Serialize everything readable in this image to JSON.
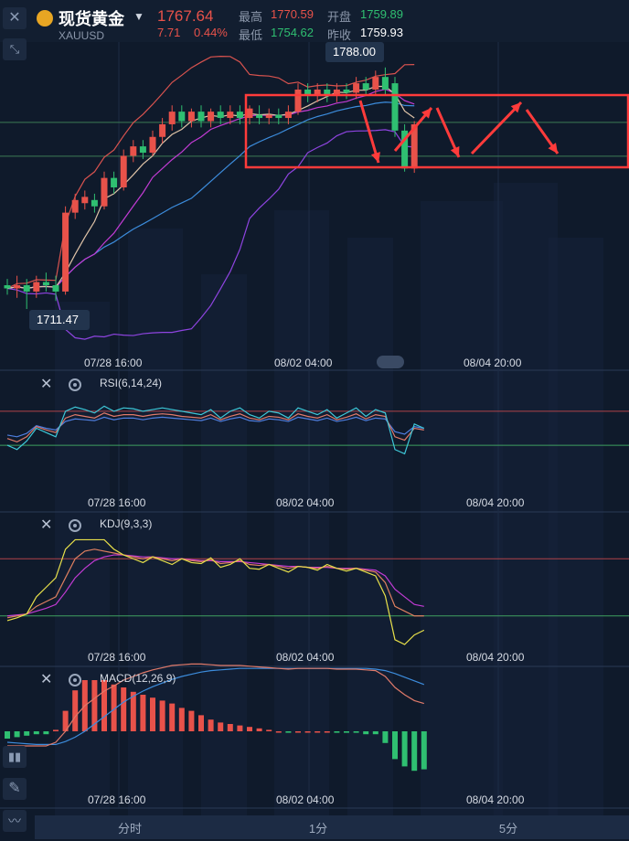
{
  "header": {
    "title": "现货黄金",
    "symbol": "XAUUSD",
    "price": "1767.64",
    "change": "7.71",
    "change_pct": "0.44%",
    "high_label": "最高",
    "high_value": "1770.59",
    "open_label": "开盘",
    "open_value": "1759.89",
    "low_label": "最低",
    "low_value": "1754.62",
    "prev_close_label": "昨收",
    "prev_close_value": "1759.93",
    "up_color": "#e8524a",
    "down_color": "#2fbf71"
  },
  "main_chart": {
    "high_marker": "1788.00",
    "low_marker": "1711.47",
    "x_labels": [
      "07/28 16:00",
      "08/02 04:00",
      "08/04 20:00"
    ]
  },
  "panels": {
    "rsi": {
      "label": "RSI(6,14,24)"
    },
    "kdj": {
      "label": "KDJ(9,3,3)"
    },
    "macd": {
      "label": "MACD(12,26,9)"
    }
  },
  "panel_x_labels": [
    "07/28 16:00",
    "08/02 04:00",
    "08/04 20:00"
  ],
  "bottom_tabs": [
    "分时",
    "1分",
    "5分"
  ],
  "icons": {
    "close": "close-icon",
    "collapse": "collapse-icon",
    "gear": "gear-icon",
    "candle": "candle-style-icon",
    "pen": "pen-icon",
    "indicator": "indicator-icon"
  },
  "chart_data": {
    "type": "line",
    "title": "",
    "xlabel": "",
    "ylabel": "",
    "price_high": 1788.0,
    "price_low": 1711.47,
    "candles": [
      {
        "o": 1719,
        "c": 1718,
        "h": 1721,
        "l": 1716
      },
      {
        "o": 1718,
        "c": 1719,
        "h": 1722,
        "l": 1715
      },
      {
        "o": 1719,
        "c": 1717,
        "h": 1721,
        "l": 1711.47
      },
      {
        "o": 1717,
        "c": 1720,
        "h": 1722,
        "l": 1715
      },
      {
        "o": 1720,
        "c": 1719,
        "h": 1723,
        "l": 1717
      },
      {
        "o": 1719,
        "c": 1717,
        "h": 1722,
        "l": 1714
      },
      {
        "o": 1717,
        "c": 1742,
        "h": 1744,
        "l": 1716
      },
      {
        "o": 1742,
        "c": 1746,
        "h": 1748,
        "l": 1740
      },
      {
        "o": 1745,
        "c": 1747,
        "h": 1749,
        "l": 1743
      },
      {
        "o": 1746,
        "c": 1744,
        "h": 1748,
        "l": 1742
      },
      {
        "o": 1744,
        "c": 1753,
        "h": 1755,
        "l": 1743
      },
      {
        "o": 1753,
        "c": 1750,
        "h": 1755,
        "l": 1748
      },
      {
        "o": 1750,
        "c": 1760,
        "h": 1762,
        "l": 1749
      },
      {
        "o": 1760,
        "c": 1763,
        "h": 1765,
        "l": 1758
      },
      {
        "o": 1763,
        "c": 1761,
        "h": 1765,
        "l": 1759
      },
      {
        "o": 1761,
        "c": 1766,
        "h": 1768,
        "l": 1760
      },
      {
        "o": 1766,
        "c": 1770,
        "h": 1772,
        "l": 1764
      },
      {
        "o": 1770,
        "c": 1774,
        "h": 1776,
        "l": 1768
      },
      {
        "o": 1774,
        "c": 1771,
        "h": 1776,
        "l": 1769
      },
      {
        "o": 1771,
        "c": 1774,
        "h": 1775,
        "l": 1769
      },
      {
        "o": 1774,
        "c": 1771,
        "h": 1776,
        "l": 1769
      },
      {
        "o": 1771,
        "c": 1774,
        "h": 1775,
        "l": 1769
      },
      {
        "o": 1774,
        "c": 1772,
        "h": 1776,
        "l": 1770
      },
      {
        "o": 1772,
        "c": 1774,
        "h": 1776,
        "l": 1770
      },
      {
        "o": 1774,
        "c": 1772,
        "h": 1776,
        "l": 1770
      },
      {
        "o": 1772,
        "c": 1775,
        "h": 1776,
        "l": 1770
      },
      {
        "o": 1773,
        "c": 1772,
        "h": 1776,
        "l": 1770
      },
      {
        "o": 1772,
        "c": 1773,
        "h": 1775,
        "l": 1770
      },
      {
        "o": 1773,
        "c": 1772,
        "h": 1775,
        "l": 1770
      },
      {
        "o": 1772,
        "c": 1774,
        "h": 1776,
        "l": 1770
      },
      {
        "o": 1774,
        "c": 1781,
        "h": 1783,
        "l": 1773
      },
      {
        "o": 1781,
        "c": 1779,
        "h": 1783,
        "l": 1777
      },
      {
        "o": 1779,
        "c": 1781,
        "h": 1783,
        "l": 1777
      },
      {
        "o": 1781,
        "c": 1779,
        "h": 1783,
        "l": 1777
      },
      {
        "o": 1779,
        "c": 1781,
        "h": 1783,
        "l": 1777
      },
      {
        "o": 1781,
        "c": 1780,
        "h": 1783,
        "l": 1778
      },
      {
        "o": 1780,
        "c": 1783,
        "h": 1785,
        "l": 1778
      },
      {
        "o": 1783,
        "c": 1781,
        "h": 1785,
        "l": 1779
      },
      {
        "o": 1781,
        "c": 1785,
        "h": 1787,
        "l": 1779
      },
      {
        "o": 1785,
        "c": 1781,
        "h": 1788,
        "l": 1779
      },
      {
        "o": 1783,
        "c": 1768,
        "h": 1785,
        "l": 1766
      },
      {
        "o": 1768,
        "c": 1756,
        "h": 1770,
        "l": 1755
      },
      {
        "o": 1756,
        "c": 1770,
        "h": 1771,
        "l": 1754.62
      }
    ],
    "rsi": {
      "rsi6": [
        30,
        25,
        35,
        50,
        45,
        40,
        70,
        75,
        72,
        68,
        76,
        70,
        74,
        73,
        70,
        72,
        74,
        72,
        70,
        68,
        66,
        72,
        62,
        70,
        74,
        66,
        62,
        70,
        68,
        62,
        74,
        70,
        66,
        72,
        62,
        68,
        74,
        64,
        72,
        68,
        25,
        20,
        55,
        50
      ],
      "rsi14": [
        38,
        34,
        40,
        52,
        48,
        45,
        62,
        66,
        64,
        62,
        68,
        64,
        66,
        66,
        64,
        66,
        67,
        66,
        64,
        63,
        62,
        66,
        60,
        64,
        67,
        62,
        60,
        64,
        63,
        60,
        67,
        64,
        62,
        66,
        60,
        63,
        67,
        61,
        66,
        64,
        40,
        36,
        50,
        48
      ],
      "rsi24": [
        42,
        40,
        44,
        53,
        50,
        48,
        58,
        61,
        60,
        59,
        63,
        60,
        62,
        62,
        60,
        62,
        63,
        62,
        61,
        60,
        59,
        62,
        58,
        61,
        63,
        59,
        58,
        61,
        60,
        58,
        63,
        61,
        59,
        62,
        58,
        60,
        63,
        59,
        62,
        61,
        46,
        43,
        52,
        50
      ]
    },
    "kdj": {
      "k": [
        18,
        20,
        22,
        30,
        35,
        40,
        60,
        80,
        88,
        90,
        88,
        86,
        84,
        82,
        80,
        82,
        80,
        78,
        80,
        78,
        77,
        79,
        75,
        76,
        78,
        74,
        73,
        74,
        72,
        70,
        72,
        71,
        70,
        72,
        70,
        69,
        70,
        68,
        66,
        55,
        30,
        25,
        20,
        20
      ],
      "d": [
        20,
        21,
        22,
        25,
        28,
        32,
        45,
        60,
        70,
        78,
        82,
        84,
        84,
        83,
        82,
        82,
        81,
        80,
        80,
        79,
        78,
        78,
        77,
        77,
        77,
        76,
        75,
        74,
        73,
        72,
        72,
        71,
        71,
        71,
        70,
        70,
        70,
        69,
        68,
        62,
        48,
        40,
        32,
        30
      ],
      "j": [
        15,
        18,
        22,
        40,
        50,
        60,
        90,
        100,
        100,
        100,
        100,
        90,
        84,
        80,
        76,
        82,
        78,
        74,
        80,
        76,
        75,
        81,
        71,
        74,
        80,
        70,
        69,
        74,
        70,
        66,
        72,
        71,
        68,
        74,
        70,
        67,
        70,
        66,
        62,
        41,
        -5,
        -10,
        0,
        5
      ]
    },
    "macd": {
      "dif": [
        -2,
        -2,
        -2,
        -2,
        -2,
        -1.5,
        0,
        2,
        3.5,
        4.5,
        5.5,
        6.2,
        7,
        7.5,
        8,
        8.4,
        8.7,
        9,
        9.1,
        9.2,
        9.2,
        9.1,
        9,
        9,
        9,
        8.9,
        8.8,
        8.7,
        8.6,
        8.5,
        8.6,
        8.6,
        8.6,
        8.6,
        8.5,
        8.5,
        8.5,
        8.4,
        8.3,
        7.5,
        6,
        5,
        4.2,
        3.8
      ],
      "dea": [
        -1.5,
        -1.6,
        -1.7,
        -1.8,
        -1.8,
        -1.8,
        -1.4,
        -0.8,
        0,
        1,
        2,
        3,
        4,
        4.8,
        5.5,
        6.1,
        6.6,
        7.1,
        7.5,
        7.8,
        8.1,
        8.3,
        8.4,
        8.5,
        8.6,
        8.6,
        8.6,
        8.6,
        8.6,
        8.6,
        8.6,
        8.6,
        8.6,
        8.6,
        8.6,
        8.6,
        8.6,
        8.6,
        8.5,
        8.3,
        7.9,
        7.4,
        6.9,
        6.4
      ],
      "hist": [
        -1,
        -0.8,
        -0.6,
        -0.4,
        -0.4,
        0.2,
        2.8,
        5.6,
        7,
        7,
        7,
        6.4,
        6,
        5.4,
        5,
        4.6,
        4.2,
        3.8,
        3.2,
        2.8,
        2.2,
        1.6,
        1.2,
        1,
        0.8,
        0.6,
        0.4,
        0.2,
        0,
        -0.2,
        0,
        0,
        0,
        0,
        -0.2,
        -0.2,
        -0.2,
        -0.4,
        -0.4,
        -1.6,
        -3.8,
        -4.8,
        -5.4,
        -5.2
      ]
    }
  }
}
